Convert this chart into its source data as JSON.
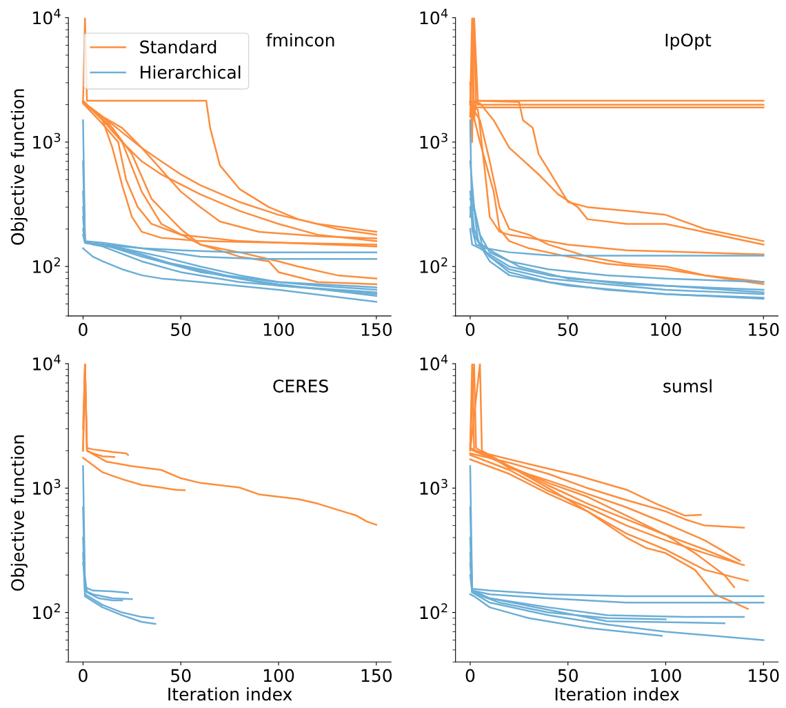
{
  "chart_data": [
    {
      "type": "line",
      "title": "fmincon",
      "ylabel": "Objective function",
      "log": "y",
      "legend": "top left",
      "xlim": [
        -7.5,
        157.5
      ],
      "ylim": [
        40,
        10000
      ],
      "xticks": [
        0,
        50,
        100,
        150
      ],
      "yticks": [
        {
          "value": 100,
          "label": "10$^{2}$"
        },
        {
          "value": 1000,
          "label": "10$^{3}$"
        },
        {
          "value": 10000,
          "label": "10$^{4}$"
        }
      ],
      "series": [
        {
          "name": "Standard",
          "color": "#fd8d3c",
          "x": [
            0,
            1,
            2,
            62,
            63,
            65,
            70,
            80,
            95,
            110,
            130,
            150
          ],
          "values": [
            2100,
            10000,
            2150,
            2150,
            2150,
            1300,
            650,
            420,
            300,
            240,
            200,
            180
          ]
        },
        {
          "color": "#fd8d3c",
          "x": [
            0,
            10,
            20,
            30,
            40,
            50,
            60,
            80,
            100,
            120,
            150
          ],
          "values": [
            2100,
            1600,
            1200,
            900,
            700,
            550,
            450,
            330,
            260,
            220,
            190
          ]
        },
        {
          "color": "#fd8d3c",
          "x": [
            0,
            10,
            20,
            30,
            40,
            60,
            80,
            100,
            120,
            150
          ],
          "values": [
            2150,
            1500,
            1000,
            700,
            550,
            380,
            280,
            220,
            180,
            160
          ]
        },
        {
          "color": "#fd8d3c",
          "x": [
            0,
            10,
            15,
            20,
            25,
            30,
            40,
            60,
            100,
            150
          ],
          "values": [
            2120,
            1500,
            900,
            450,
            250,
            190,
            170,
            160,
            155,
            150
          ]
        },
        {
          "color": "#fd8d3c",
          "x": [
            0,
            10,
            18,
            22,
            28,
            35,
            50,
            80,
            150
          ],
          "values": [
            2050,
            1400,
            1000,
            500,
            300,
            220,
            180,
            160,
            145
          ]
        },
        {
          "color": "#fd8d3c",
          "x": [
            0,
            10,
            20,
            30,
            40,
            50,
            60,
            70,
            90,
            120,
            150
          ],
          "values": [
            2080,
            1600,
            1300,
            900,
            600,
            400,
            300,
            230,
            190,
            175,
            168
          ]
        },
        {
          "color": "#fd8d3c",
          "x": [
            0,
            15,
            25,
            35,
            50,
            60,
            80,
            100,
            110,
            130,
            150
          ],
          "values": [
            2100,
            1300,
            800,
            350,
            200,
            150,
            130,
            110,
            100,
            85,
            80
          ]
        },
        {
          "color": "#fd8d3c",
          "x": [
            0,
            12,
            20,
            30,
            40,
            60,
            80,
            95,
            100,
            120,
            150
          ],
          "values": [
            2100,
            1500,
            1000,
            400,
            220,
            150,
            120,
            110,
            90,
            75,
            72
          ]
        },
        {
          "name": "Hierarchical",
          "color": "#6baed6",
          "x": [
            0,
            1,
            5,
            20,
            40,
            60,
            80,
            100,
            120,
            150
          ],
          "values": [
            1500,
            160,
            150,
            140,
            120,
            100,
            85,
            75,
            70,
            65
          ]
        },
        {
          "color": "#6baed6",
          "x": [
            0,
            1,
            10,
            30,
            50,
            80,
            110,
            150
          ],
          "values": [
            700,
            155,
            150,
            140,
            135,
            130,
            130,
            130
          ]
        },
        {
          "color": "#6baed6",
          "x": [
            0,
            1,
            10,
            30,
            60,
            90,
            120,
            150
          ],
          "values": [
            400,
            160,
            155,
            140,
            120,
            115,
            115,
            115
          ]
        },
        {
          "color": "#6baed6",
          "x": [
            0,
            1,
            10,
            30,
            60,
            100,
            150
          ],
          "values": [
            300,
            155,
            150,
            120,
            90,
            75,
            68
          ]
        },
        {
          "color": "#6baed6",
          "x": [
            0,
            5,
            10,
            20,
            30,
            40,
            60,
            100,
            150
          ],
          "values": [
            140,
            120,
            110,
            95,
            85,
            80,
            75,
            65,
            52
          ]
        },
        {
          "color": "#6baed6",
          "x": [
            0,
            1,
            10,
            30,
            50,
            80,
            110,
            150
          ],
          "values": [
            200,
            155,
            145,
            110,
            90,
            75,
            68,
            60
          ]
        },
        {
          "color": "#6baed6",
          "x": [
            0,
            1,
            10,
            30,
            50,
            70,
            100,
            150
          ],
          "values": [
            250,
            155,
            150,
            125,
            100,
            85,
            70,
            62
          ]
        },
        {
          "color": "#6baed6",
          "x": [
            0,
            1,
            20,
            40,
            60,
            80,
            100,
            150
          ],
          "values": [
            180,
            155,
            140,
            110,
            95,
            80,
            72,
            58
          ]
        }
      ]
    },
    {
      "type": "line",
      "title": "IpOpt",
      "log": "y",
      "xlim": [
        -7.5,
        157.5
      ],
      "ylim": [
        40,
        10000
      ],
      "xticks": [
        0,
        50,
        100,
        150
      ],
      "yticks": [
        {
          "value": 100,
          "label": "10$^{2}$"
        },
        {
          "value": 1000,
          "label": "10$^{3}$"
        },
        {
          "value": 10000,
          "label": "10$^{4}$"
        }
      ],
      "series": [
        {
          "color": "#fd8d3c",
          "x": [
            0,
            1,
            2,
            3,
            150
          ],
          "values": [
            2000,
            10000,
            1500,
            2150,
            2150
          ]
        },
        {
          "color": "#fd8d3c",
          "x": [
            0,
            1,
            2,
            4,
            150
          ],
          "values": [
            3000,
            1000,
            10000,
            2000,
            2000
          ]
        },
        {
          "color": "#fd8d3c",
          "x": [
            0,
            2,
            3,
            150
          ],
          "values": [
            1600,
            10000,
            1900,
            1900
          ]
        },
        {
          "color": "#fd8d3c",
          "x": [
            0,
            3,
            25,
            27,
            32,
            35,
            40,
            50,
            60,
            80,
            100,
            120,
            150
          ],
          "values": [
            2100,
            2150,
            2100,
            1500,
            1300,
            800,
            600,
            330,
            300,
            280,
            260,
            200,
            160
          ]
        },
        {
          "color": "#fd8d3c",
          "x": [
            0,
            5,
            12,
            20,
            35,
            45,
            55,
            60,
            80,
            100,
            150
          ],
          "values": [
            2100,
            2050,
            1500,
            900,
            550,
            380,
            300,
            240,
            220,
            220,
            150
          ]
        },
        {
          "color": "#fd8d3c",
          "x": [
            0,
            4,
            8,
            10,
            15,
            20,
            30,
            50,
            80,
            150
          ],
          "values": [
            2100,
            1800,
            500,
            250,
            190,
            180,
            170,
            150,
            135,
            125
          ]
        },
        {
          "color": "#fd8d3c",
          "x": [
            0,
            5,
            10,
            15,
            20,
            30,
            40,
            60,
            80,
            100,
            120,
            150
          ],
          "values": [
            2000,
            1500,
            700,
            300,
            200,
            180,
            150,
            120,
            105,
            100,
            85,
            75
          ]
        },
        {
          "color": "#fd8d3c",
          "x": [
            0,
            5,
            12,
            15,
            20,
            30,
            50,
            70,
            100,
            130,
            150
          ],
          "values": [
            2100,
            1000,
            400,
            200,
            160,
            140,
            120,
            105,
            95,
            80,
            72
          ]
        },
        {
          "color": "#6baed6",
          "x": [
            0,
            1,
            3,
            8,
            20,
            40,
            60,
            100,
            150
          ],
          "values": [
            1500,
            200,
            150,
            140,
            130,
            123,
            122,
            122,
            122
          ]
        },
        {
          "color": "#6baed6",
          "x": [
            0,
            2,
            5,
            10,
            20,
            40,
            70,
            100,
            150
          ],
          "values": [
            700,
            300,
            180,
            130,
            110,
            95,
            85,
            80,
            75
          ]
        },
        {
          "color": "#6baed6",
          "x": [
            0,
            2,
            5,
            10,
            20,
            40,
            70,
            100,
            150
          ],
          "values": [
            400,
            200,
            150,
            120,
            95,
            80,
            72,
            65,
            60
          ]
        },
        {
          "color": "#6baed6",
          "x": [
            0,
            1,
            4,
            10,
            20,
            40,
            70,
            100,
            150
          ],
          "values": [
            250,
            400,
            160,
            120,
            90,
            75,
            65,
            60,
            56
          ]
        },
        {
          "color": "#6baed6",
          "x": [
            0,
            2,
            6,
            10,
            20,
            50,
            100,
            150
          ],
          "values": [
            300,
            180,
            140,
            110,
            85,
            70,
            60,
            55
          ]
        },
        {
          "color": "#6baed6",
          "x": [
            0,
            1,
            5,
            10,
            20,
            40,
            80,
            150
          ],
          "values": [
            200,
            150,
            140,
            125,
            100,
            85,
            72,
            65
          ]
        },
        {
          "color": "#6baed6",
          "x": [
            0,
            3,
            6,
            12,
            25,
            50,
            100,
            150
          ],
          "values": [
            350,
            250,
            150,
            130,
            100,
            80,
            70,
            62
          ]
        }
      ]
    },
    {
      "type": "line",
      "title": "CERES",
      "xlabel": "Iteration index",
      "ylabel": "Objective function",
      "log": "y",
      "xlim": [
        -7.5,
        157.5
      ],
      "ylim": [
        40,
        10000
      ],
      "xticks": [
        0,
        50,
        100,
        150
      ],
      "yticks": [
        {
          "value": 100,
          "label": "10$^{2}$"
        },
        {
          "value": 1000,
          "label": "10$^{3}$"
        },
        {
          "value": 10000,
          "label": "10$^{4}$"
        }
      ],
      "series": [
        {
          "color": "#fd8d3c",
          "x": [
            0,
            1,
            2,
            12,
            25,
            40,
            50,
            60,
            80,
            90,
            110,
            120,
            130,
            140,
            145,
            150
          ],
          "values": [
            2000,
            10000,
            2000,
            1630,
            1500,
            1400,
            1200,
            1100,
            1010,
            890,
            815,
            750,
            670,
            600,
            540,
            507
          ]
        },
        {
          "color": "#fd8d3c",
          "x": [
            0,
            10,
            20,
            30,
            40,
            47,
            52
          ],
          "values": [
            1750,
            1340,
            1180,
            1060,
            1010,
            970,
            960
          ]
        },
        {
          "color": "#fd8d3c",
          "x": [
            0,
            1,
            2,
            5,
            10,
            15,
            22,
            23
          ],
          "values": [
            2000,
            10000,
            2100,
            2050,
            2000,
            1950,
            1900,
            1850
          ]
        },
        {
          "color": "#fd8d3c",
          "x": [
            0,
            1,
            2,
            5,
            10,
            16
          ],
          "values": [
            3000,
            10000,
            2000,
            1900,
            1800,
            1780
          ]
        },
        {
          "color": "#6baed6",
          "x": [
            0,
            1,
            5,
            15,
            23
          ],
          "values": [
            1500,
            160,
            150,
            148,
            144
          ]
        },
        {
          "color": "#6baed6",
          "x": [
            0,
            1,
            5,
            15,
            25
          ],
          "values": [
            700,
            150,
            140,
            130,
            128
          ]
        },
        {
          "color": "#6baed6",
          "x": [
            0,
            1,
            10,
            20,
            30,
            36
          ],
          "values": [
            400,
            140,
            115,
            100,
            92,
            90
          ]
        },
        {
          "color": "#6baed6",
          "x": [
            0,
            1,
            10,
            20,
            30,
            37
          ],
          "values": [
            300,
            135,
            110,
            95,
            84,
            81
          ]
        },
        {
          "color": "#6baed6",
          "x": [
            0,
            2,
            8,
            15,
            20
          ],
          "values": [
            250,
            145,
            130,
            125,
            125
          ]
        }
      ]
    },
    {
      "type": "line",
      "title": "sumsl",
      "xlabel": "Iteration index",
      "log": "y",
      "xlim": [
        -7.5,
        157.5
      ],
      "ylim": [
        40,
        10000
      ],
      "xticks": [
        0,
        50,
        100,
        150
      ],
      "yticks": [
        {
          "value": 100,
          "label": "10$^{2}$"
        },
        {
          "value": 1000,
          "label": "10$^{3}$"
        },
        {
          "value": 10000,
          "label": "10$^{4}$"
        }
      ],
      "series": [
        {
          "color": "#fd8d3c",
          "x": [
            0,
            1,
            2,
            30,
            55,
            80,
            95,
            110,
            118
          ],
          "values": [
            2100,
            10000,
            2000,
            1560,
            1260,
            970,
            750,
            600,
            610
          ]
        },
        {
          "color": "#fd8d3c",
          "x": [
            0,
            20,
            40,
            60,
            80,
            100,
            110,
            120,
            140
          ],
          "values": [
            1900,
            1600,
            1300,
            1000,
            800,
            650,
            560,
            500,
            480
          ]
        },
        {
          "color": "#fd8d3c",
          "x": [
            0,
            5,
            6,
            20,
            40,
            60,
            80,
            100,
            120,
            137
          ],
          "values": [
            2000,
            10000,
            2000,
            1500,
            1050,
            750,
            560,
            420,
            320,
            250
          ]
        },
        {
          "color": "#fd8d3c",
          "x": [
            0,
            20,
            40,
            60,
            80,
            100,
            120,
            140
          ],
          "values": [
            1850,
            1400,
            950,
            700,
            500,
            380,
            300,
            240
          ]
        },
        {
          "color": "#fd8d3c",
          "x": [
            0,
            20,
            40,
            60,
            80,
            100,
            120,
            142
          ],
          "values": [
            1700,
            1300,
            900,
            650,
            430,
            320,
            220,
            180
          ]
        },
        {
          "color": "#fd8d3c",
          "x": [
            0,
            20,
            40,
            60,
            80,
            90,
            100,
            115,
            125,
            135,
            142
          ],
          "values": [
            2050,
            1500,
            1000,
            650,
            400,
            330,
            300,
            220,
            140,
            120,
            107
          ]
        },
        {
          "color": "#fd8d3c",
          "x": [
            0,
            20,
            40,
            60,
            80,
            100,
            115,
            130,
            135
          ],
          "values": [
            2100,
            1500,
            1100,
            850,
            600,
            420,
            300,
            200,
            160
          ]
        },
        {
          "color": "#fd8d3c",
          "x": [
            0,
            2,
            3,
            20,
            40,
            60,
            80,
            100,
            120,
            138
          ],
          "values": [
            2200,
            10000,
            2100,
            1450,
            1150,
            900,
            700,
            520,
            380,
            260
          ]
        },
        {
          "color": "#6baed6",
          "x": [
            0,
            1,
            10,
            40,
            80,
            150
          ],
          "values": [
            1500,
            155,
            150,
            140,
            135,
            135
          ]
        },
        {
          "color": "#6baed6",
          "x": [
            0,
            1,
            10,
            40,
            80,
            150
          ],
          "values": [
            700,
            150,
            140,
            130,
            120,
            120
          ]
        },
        {
          "color": "#6baed6",
          "x": [
            0,
            1,
            10,
            40,
            70,
            110,
            140
          ],
          "values": [
            400,
            150,
            130,
            110,
            95,
            92,
            92
          ]
        },
        {
          "color": "#6baed6",
          "x": [
            0,
            1,
            10,
            40,
            70,
            100,
            150
          ],
          "values": [
            300,
            145,
            120,
            95,
            80,
            70,
            60
          ]
        },
        {
          "color": "#6baed6",
          "x": [
            0,
            2,
            10,
            30,
            60,
            98
          ],
          "values": [
            140,
            135,
            110,
            90,
            75,
            65
          ]
        },
        {
          "color": "#6baed6",
          "x": [
            0,
            1,
            10,
            40,
            70,
            130
          ],
          "values": [
            250,
            150,
            130,
            105,
            85,
            82
          ]
        },
        {
          "color": "#6baed6",
          "x": [
            0,
            1,
            15,
            40,
            70,
            100
          ],
          "values": [
            200,
            145,
            120,
            100,
            90,
            88
          ]
        }
      ]
    }
  ]
}
